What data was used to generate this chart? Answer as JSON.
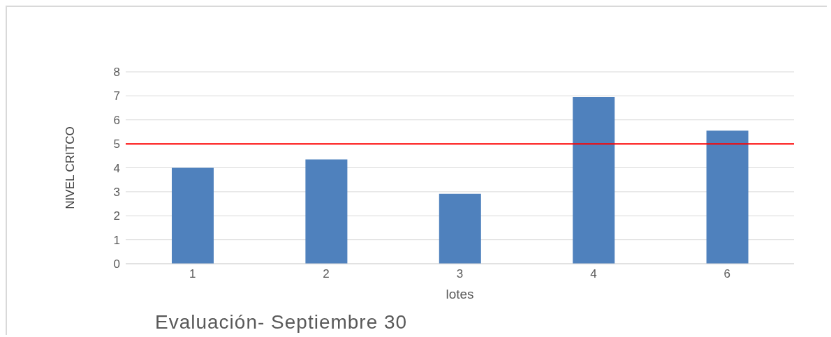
{
  "chart_data": {
    "type": "bar",
    "title": "Evaluación- Septiembre 30",
    "xlabel": "lotes",
    "ylabel": "NIVEL CRITCO",
    "categories": [
      "1",
      "2",
      "3",
      "4",
      "6"
    ],
    "values": [
      4.0,
      4.35,
      2.92,
      6.95,
      5.55
    ],
    "color": "#4f81bd",
    "ylim": [
      0,
      8
    ],
    "yticks": [
      0,
      1,
      2,
      3,
      4,
      5,
      6,
      7,
      8
    ],
    "grid": "y",
    "ref_lines": [
      {
        "axis": "y",
        "value": 5,
        "color": "#ff0000"
      }
    ]
  }
}
